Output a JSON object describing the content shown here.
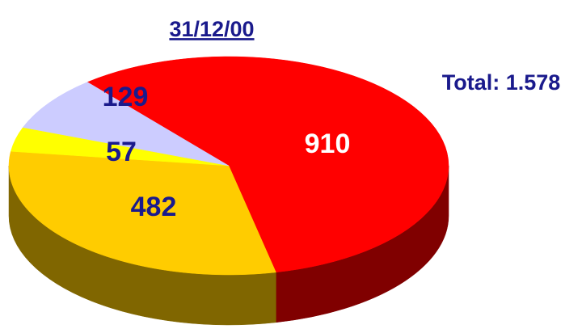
{
  "chart_data": {
    "type": "pie",
    "title": "31/12/00",
    "annotation": "Total: 1.578",
    "values": [
      910,
      482,
      57,
      129
    ],
    "colors": [
      "#ff0000",
      "#ffcc00",
      "#ffff00",
      "#ccccff"
    ],
    "side_colors": [
      "#800000",
      "#806600",
      "#808000",
      "#666680"
    ],
    "label_colors": [
      "#ffffff",
      "#1a1a8c",
      "#1a1a8c",
      "#1a1a8c"
    ]
  }
}
